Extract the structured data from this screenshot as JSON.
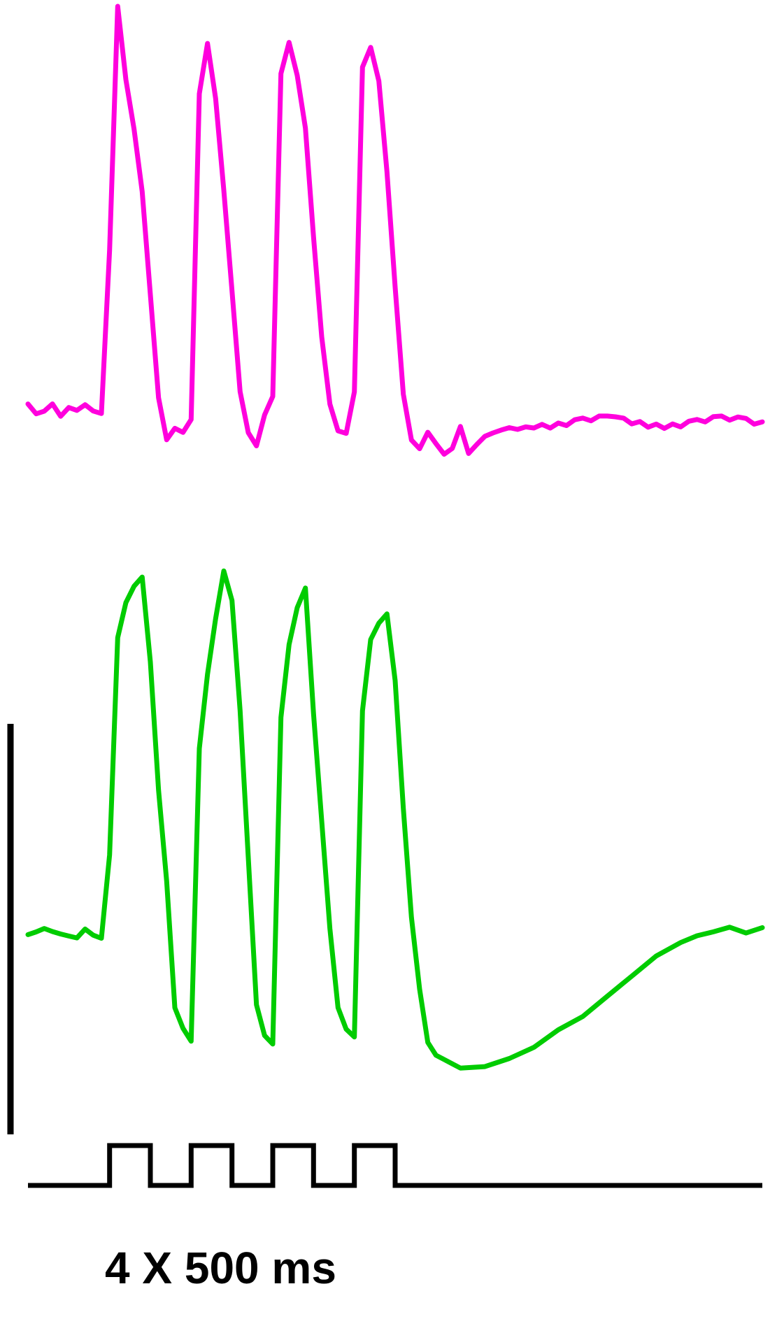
{
  "chart_data": {
    "type": "line",
    "title": "",
    "xlabel": "",
    "ylabel": "",
    "stimulus": {
      "label": "4 X 500 ms",
      "pulses": 4,
      "pulse_duration_ms": 500,
      "color": "#000000"
    },
    "series": [
      {
        "color": "#ff00dd",
        "baseline": 0,
        "x": [
          0,
          0.1,
          0.2,
          0.3,
          0.4,
          0.5,
          0.6,
          0.7,
          0.8,
          0.9,
          1.0,
          1.1,
          1.2,
          1.3,
          1.4,
          1.5,
          1.6,
          1.7,
          1.8,
          1.9,
          2.0,
          2.1,
          2.2,
          2.3,
          2.4,
          2.5,
          2.6,
          2.7,
          2.8,
          2.9,
          3.0,
          3.1,
          3.2,
          3.3,
          3.4,
          3.5,
          3.6,
          3.7,
          3.8,
          3.9,
          4.0,
          4.1,
          4.2,
          4.3,
          4.4,
          4.5,
          4.6,
          4.7,
          4.8,
          4.9,
          5.0,
          5.1,
          5.2,
          5.3,
          5.4,
          5.5,
          5.6,
          5.7,
          5.8,
          5.9,
          6.0,
          6.1,
          6.2,
          6.3,
          6.4,
          6.5,
          6.6,
          6.7,
          6.8,
          6.9,
          7.0,
          7.1,
          7.2,
          7.3,
          7.4,
          7.5,
          7.6,
          7.7,
          7.8,
          7.9,
          8.0,
          8.1,
          8.2,
          8.3,
          8.4,
          8.5,
          8.6,
          8.7,
          8.8,
          8.9,
          9.0
        ],
        "y": [
          0.03,
          0.01,
          0.02,
          0.04,
          0.01,
          0.03,
          0.02,
          0.03,
          0.01,
          0.0,
          0.4,
          1.0,
          0.82,
          0.7,
          0.55,
          0.3,
          0.05,
          -0.05,
          -0.02,
          -0.03,
          0.0,
          0.8,
          0.92,
          0.78,
          0.55,
          0.3,
          0.05,
          -0.05,
          -0.08,
          0.0,
          0.05,
          0.85,
          0.93,
          0.85,
          0.72,
          0.45,
          0.2,
          0.03,
          -0.04,
          -0.05,
          0.05,
          0.85,
          0.9,
          0.82,
          0.6,
          0.32,
          0.06,
          -0.05,
          -0.07,
          -0.03,
          -0.06,
          -0.09,
          -0.08,
          -0.03,
          -0.1,
          -0.08,
          -0.06,
          -0.05,
          -0.04,
          -0.03,
          -0.03,
          -0.02,
          -0.02,
          -0.01,
          -0.02,
          -0.01,
          -0.02,
          -0.01,
          -0.01,
          -0.02,
          -0.01,
          -0.01,
          -0.01,
          -0.01,
          -0.02,
          -0.01,
          -0.02,
          -0.01,
          -0.02,
          -0.01,
          -0.02,
          -0.01,
          -0.01,
          -0.02,
          -0.01,
          -0.01,
          -0.02,
          -0.01,
          -0.01,
          -0.02,
          -0.01
        ]
      },
      {
        "color": "#00cc00",
        "baseline": 0,
        "x": [
          0,
          0.1,
          0.2,
          0.3,
          0.4,
          0.5,
          0.6,
          0.7,
          0.8,
          0.9,
          1.0,
          1.1,
          1.2,
          1.3,
          1.4,
          1.5,
          1.6,
          1.7,
          1.8,
          1.9,
          2.0,
          2.1,
          2.2,
          2.3,
          2.4,
          2.5,
          2.6,
          2.7,
          2.8,
          2.9,
          3.0,
          3.1,
          3.2,
          3.3,
          3.4,
          3.5,
          3.6,
          3.7,
          3.8,
          3.9,
          4.0,
          4.1,
          4.2,
          4.3,
          4.4,
          4.5,
          4.6,
          4.7,
          4.8,
          4.9,
          5.0,
          5.3,
          5.6,
          5.9,
          6.2,
          6.5,
          6.8,
          7.1,
          7.4,
          7.7,
          8.0,
          8.2,
          8.4,
          8.6,
          8.8,
          9.0
        ],
        "y": [
          0.0,
          0.01,
          0.02,
          0.01,
          0.0,
          -0.01,
          -0.02,
          0.0,
          -0.02,
          -0.03,
          0.2,
          0.8,
          0.9,
          0.95,
          0.98,
          0.75,
          0.4,
          0.15,
          -0.2,
          -0.26,
          -0.3,
          0.5,
          0.7,
          0.85,
          0.98,
          0.9,
          0.6,
          0.2,
          -0.2,
          -0.28,
          -0.3,
          0.6,
          0.8,
          0.9,
          0.95,
          0.6,
          0.3,
          0.0,
          -0.22,
          -0.28,
          -0.3,
          0.6,
          0.8,
          0.85,
          0.88,
          0.7,
          0.35,
          0.05,
          -0.15,
          -0.3,
          -0.34,
          -0.38,
          -0.38,
          -0.36,
          -0.33,
          -0.28,
          -0.24,
          -0.18,
          -0.12,
          -0.06,
          -0.02,
          0.0,
          0.01,
          0.02,
          0.0,
          0.01
        ]
      }
    ]
  }
}
